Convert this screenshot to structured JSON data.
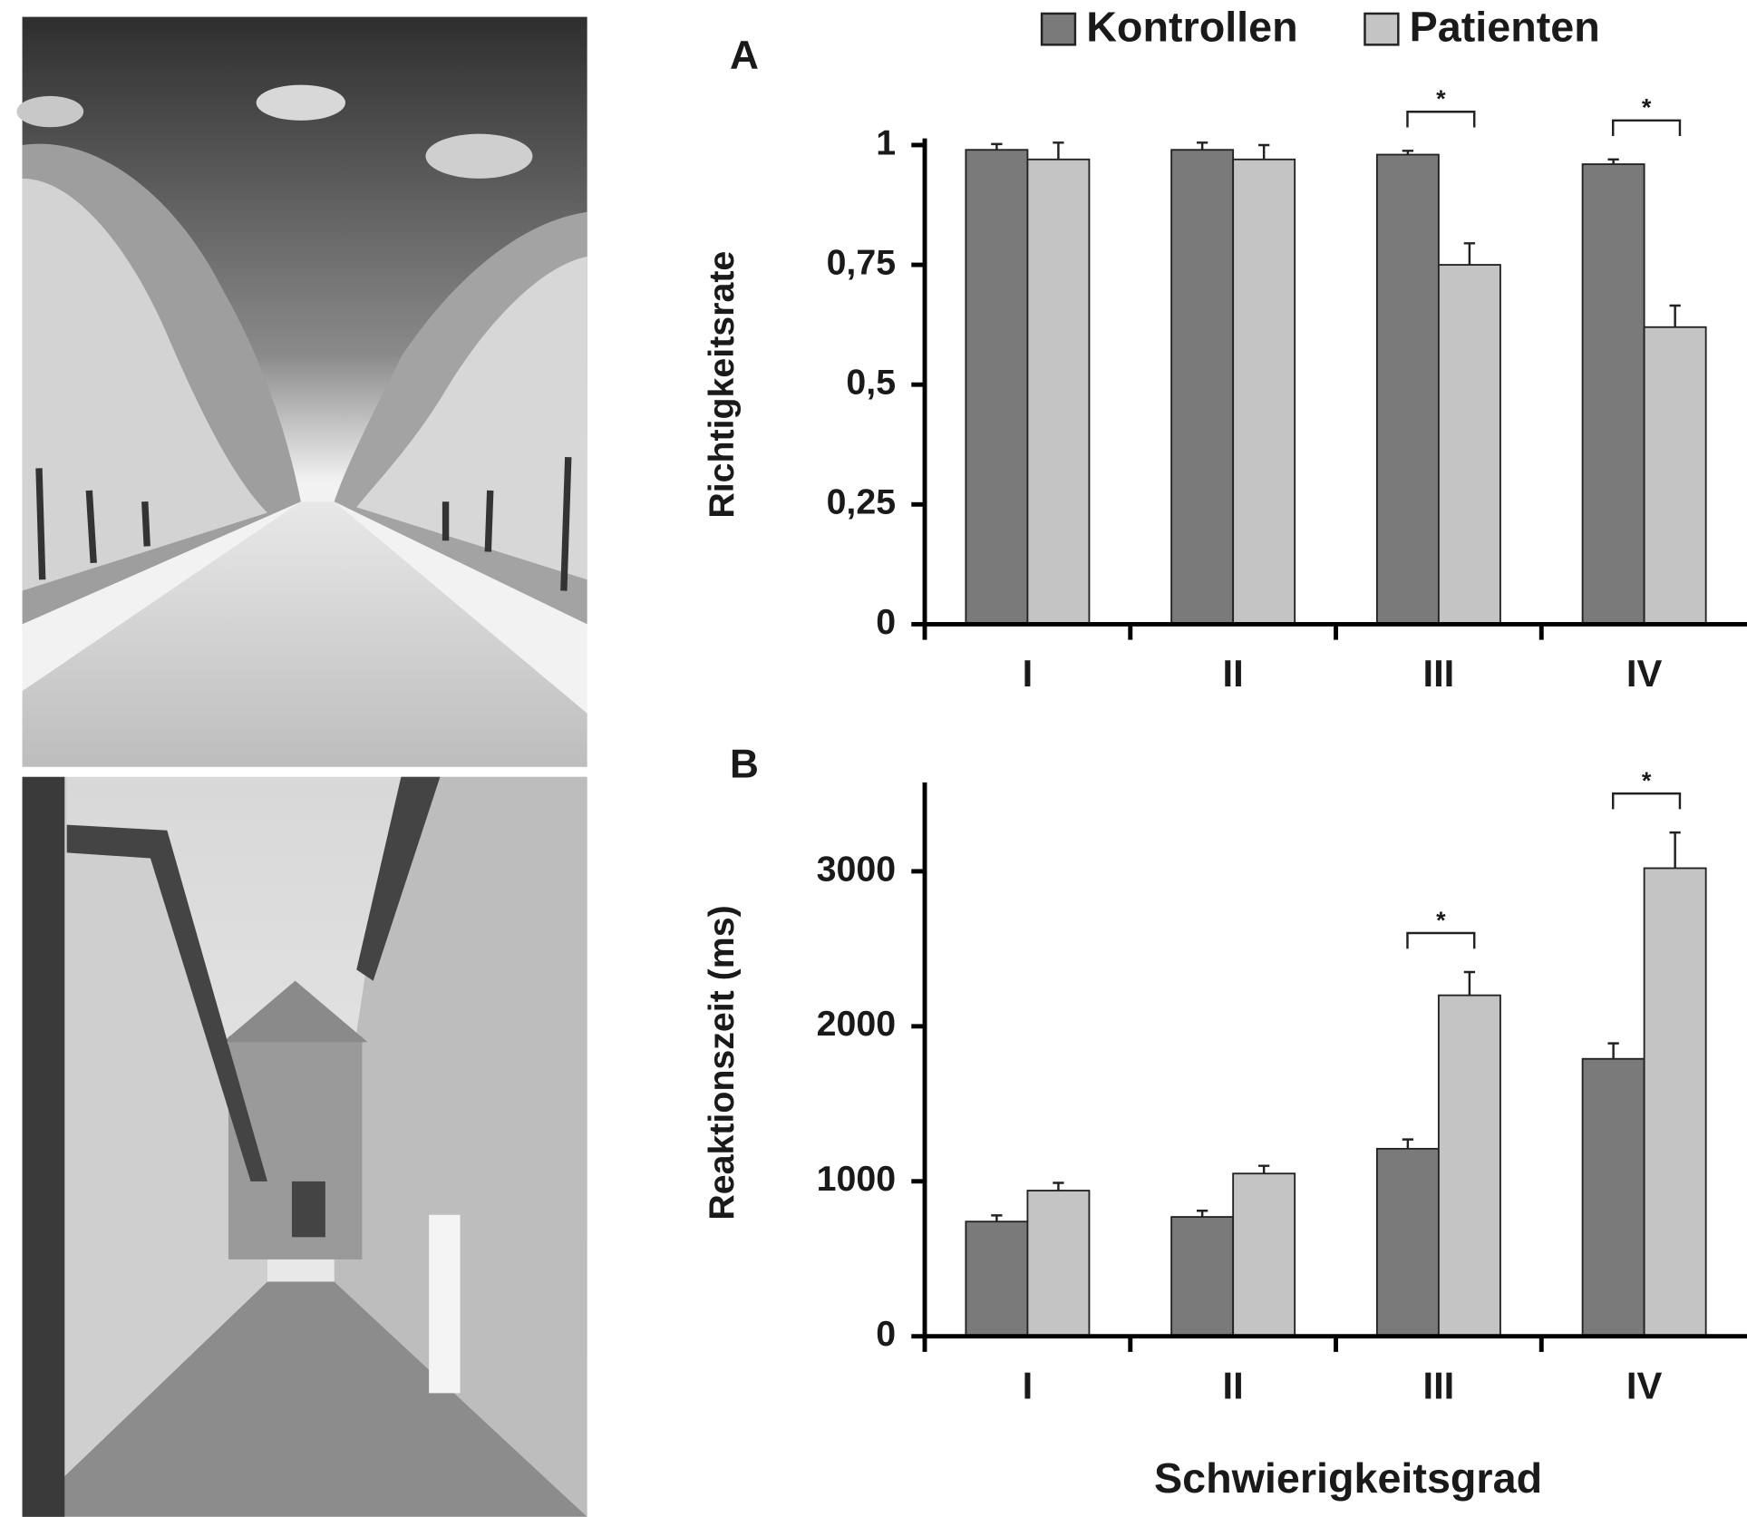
{
  "chart_data": [
    {
      "type": "bar",
      "panel_label": "A",
      "ylabel": "Richtigkeitsrate",
      "categories": [
        "I",
        "II",
        "III",
        "IV"
      ],
      "series": [
        {
          "name": "Kontrollen",
          "color": "#7a7a7a",
          "values": [
            0.99,
            0.99,
            0.98,
            0.96
          ],
          "errors": [
            0.012,
            0.015,
            0.008,
            0.01
          ]
        },
        {
          "name": "Patienten",
          "color": "#c4c4c4",
          "values": [
            0.97,
            0.97,
            0.75,
            0.62
          ],
          "errors": [
            0.035,
            0.03,
            0.045,
            0.045
          ]
        }
      ],
      "ylim": [
        0,
        1
      ],
      "yticks": [
        0,
        {
          "value": 0.25,
          "label": "0,25"
        },
        {
          "value": 0.5,
          "label": "0,5"
        },
        {
          "value": 0.75,
          "label": "0,75"
        },
        1
      ],
      "significance": [
        {
          "category": "III",
          "label": "*"
        },
        {
          "category": "IV",
          "label": "*"
        }
      ]
    },
    {
      "type": "bar",
      "panel_label": "B",
      "ylabel": "Reaktionszeit (ms)",
      "xlabel": "Schwierigkeitsgrad",
      "categories": [
        "I",
        "II",
        "III",
        "IV"
      ],
      "series": [
        {
          "color": "#7a7a7a",
          "values": [
            740,
            770,
            1210,
            1790
          ],
          "errors": [
            40,
            40,
            60,
            100
          ]
        },
        {
          "color": "#c4c4c4",
          "values": [
            940,
            1050,
            2200,
            3020
          ],
          "errors": [
            50,
            50,
            150,
            230
          ]
        }
      ],
      "ylim": [
        0,
        3530
      ],
      "yticks": [
        0,
        1000,
        2000,
        3000
      ],
      "significance": [
        {
          "category": "III",
          "label": "*"
        },
        {
          "category": "IV",
          "label": "*"
        }
      ]
    }
  ]
}
